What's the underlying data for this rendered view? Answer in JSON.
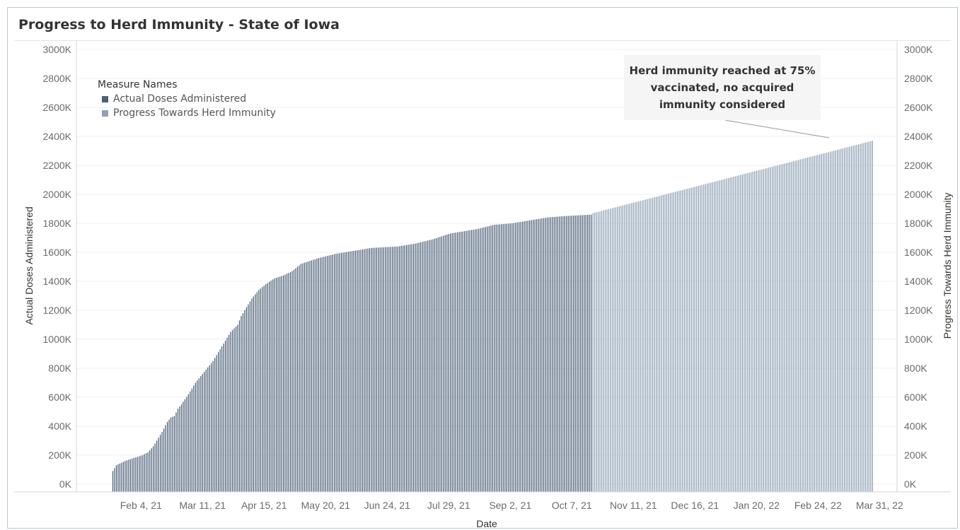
{
  "title": "Progress to Herd Immunity - State of Iowa",
  "legend": {
    "title": "Measure Names",
    "items": [
      {
        "label": "Actual Doses Administered",
        "color": "#4e6178"
      },
      {
        "label": "Progress Towards Herd Immunity",
        "color": "#8fa2b5"
      }
    ]
  },
  "annotation": {
    "lines": [
      "Herd immunity reached at 75%",
      "vaccinated, no acquired",
      "immunity considered"
    ]
  },
  "chart_data": {
    "type": "bar",
    "x_label": "Date",
    "y_label_left": "Actual Doses Administered",
    "y_label_right": "Progress Towards Herd Immunity",
    "ylim": [
      0,
      3000
    ],
    "y_ticks": [
      "0K",
      "200K",
      "400K",
      "600K",
      "800K",
      "1000K",
      "1200K",
      "1400K",
      "1600K",
      "1800K",
      "2000K",
      "2200K",
      "2400K",
      "2600K",
      "2800K",
      "3000K"
    ],
    "x_ticks": [
      "Feb 4, 21",
      "Mar 11, 21",
      "Apr 15, 21",
      "May 20, 21",
      "Jun 24, 21",
      "Jul 29, 21",
      "Sep 2, 21",
      "Oct 7, 21",
      "Nov 11, 21",
      "Dec 16, 21",
      "Jan 20, 22",
      "Feb 24, 22",
      "Mar 31, 22"
    ],
    "x_tick_day_index": [
      29,
      64,
      99,
      134,
      169,
      204,
      239,
      274,
      309,
      344,
      379,
      414,
      449
    ],
    "day_range": [
      13,
      445
    ],
    "grid": true,
    "series": [
      {
        "name": "Actual Doses Administered",
        "color": "#4e6178",
        "day_range": [
          13,
          285
        ],
        "values_thousands_by_day_anchor": [
          [
            13,
            90
          ],
          [
            15,
            130
          ],
          [
            20,
            160
          ],
          [
            25,
            180
          ],
          [
            30,
            200
          ],
          [
            33,
            220
          ],
          [
            36,
            260
          ],
          [
            38,
            300
          ],
          [
            41,
            360
          ],
          [
            44,
            430
          ],
          [
            46,
            460
          ],
          [
            48,
            470
          ],
          [
            50,
            520
          ],
          [
            52,
            550
          ],
          [
            56,
            620
          ],
          [
            60,
            700
          ],
          [
            64,
            760
          ],
          [
            70,
            850
          ],
          [
            75,
            950
          ],
          [
            80,
            1050
          ],
          [
            84,
            1100
          ],
          [
            86,
            1160
          ],
          [
            88,
            1200
          ],
          [
            92,
            1280
          ],
          [
            96,
            1340
          ],
          [
            100,
            1380
          ],
          [
            105,
            1420
          ],
          [
            110,
            1440
          ],
          [
            115,
            1470
          ],
          [
            120,
            1520
          ],
          [
            130,
            1560
          ],
          [
            140,
            1590
          ],
          [
            150,
            1610
          ],
          [
            160,
            1630
          ],
          [
            175,
            1640
          ],
          [
            185,
            1660
          ],
          [
            195,
            1690
          ],
          [
            205,
            1730
          ],
          [
            220,
            1760
          ],
          [
            230,
            1790
          ],
          [
            240,
            1800
          ],
          [
            250,
            1820
          ],
          [
            260,
            1840
          ],
          [
            270,
            1850
          ],
          [
            285,
            1860
          ]
        ]
      },
      {
        "name": "Progress Towards Herd Immunity",
        "color": "#8fa2b5",
        "day_range": [
          286,
          445
        ],
        "values_thousands_by_day_anchor": [
          [
            286,
            1870
          ],
          [
            445,
            2370
          ]
        ]
      }
    ]
  }
}
